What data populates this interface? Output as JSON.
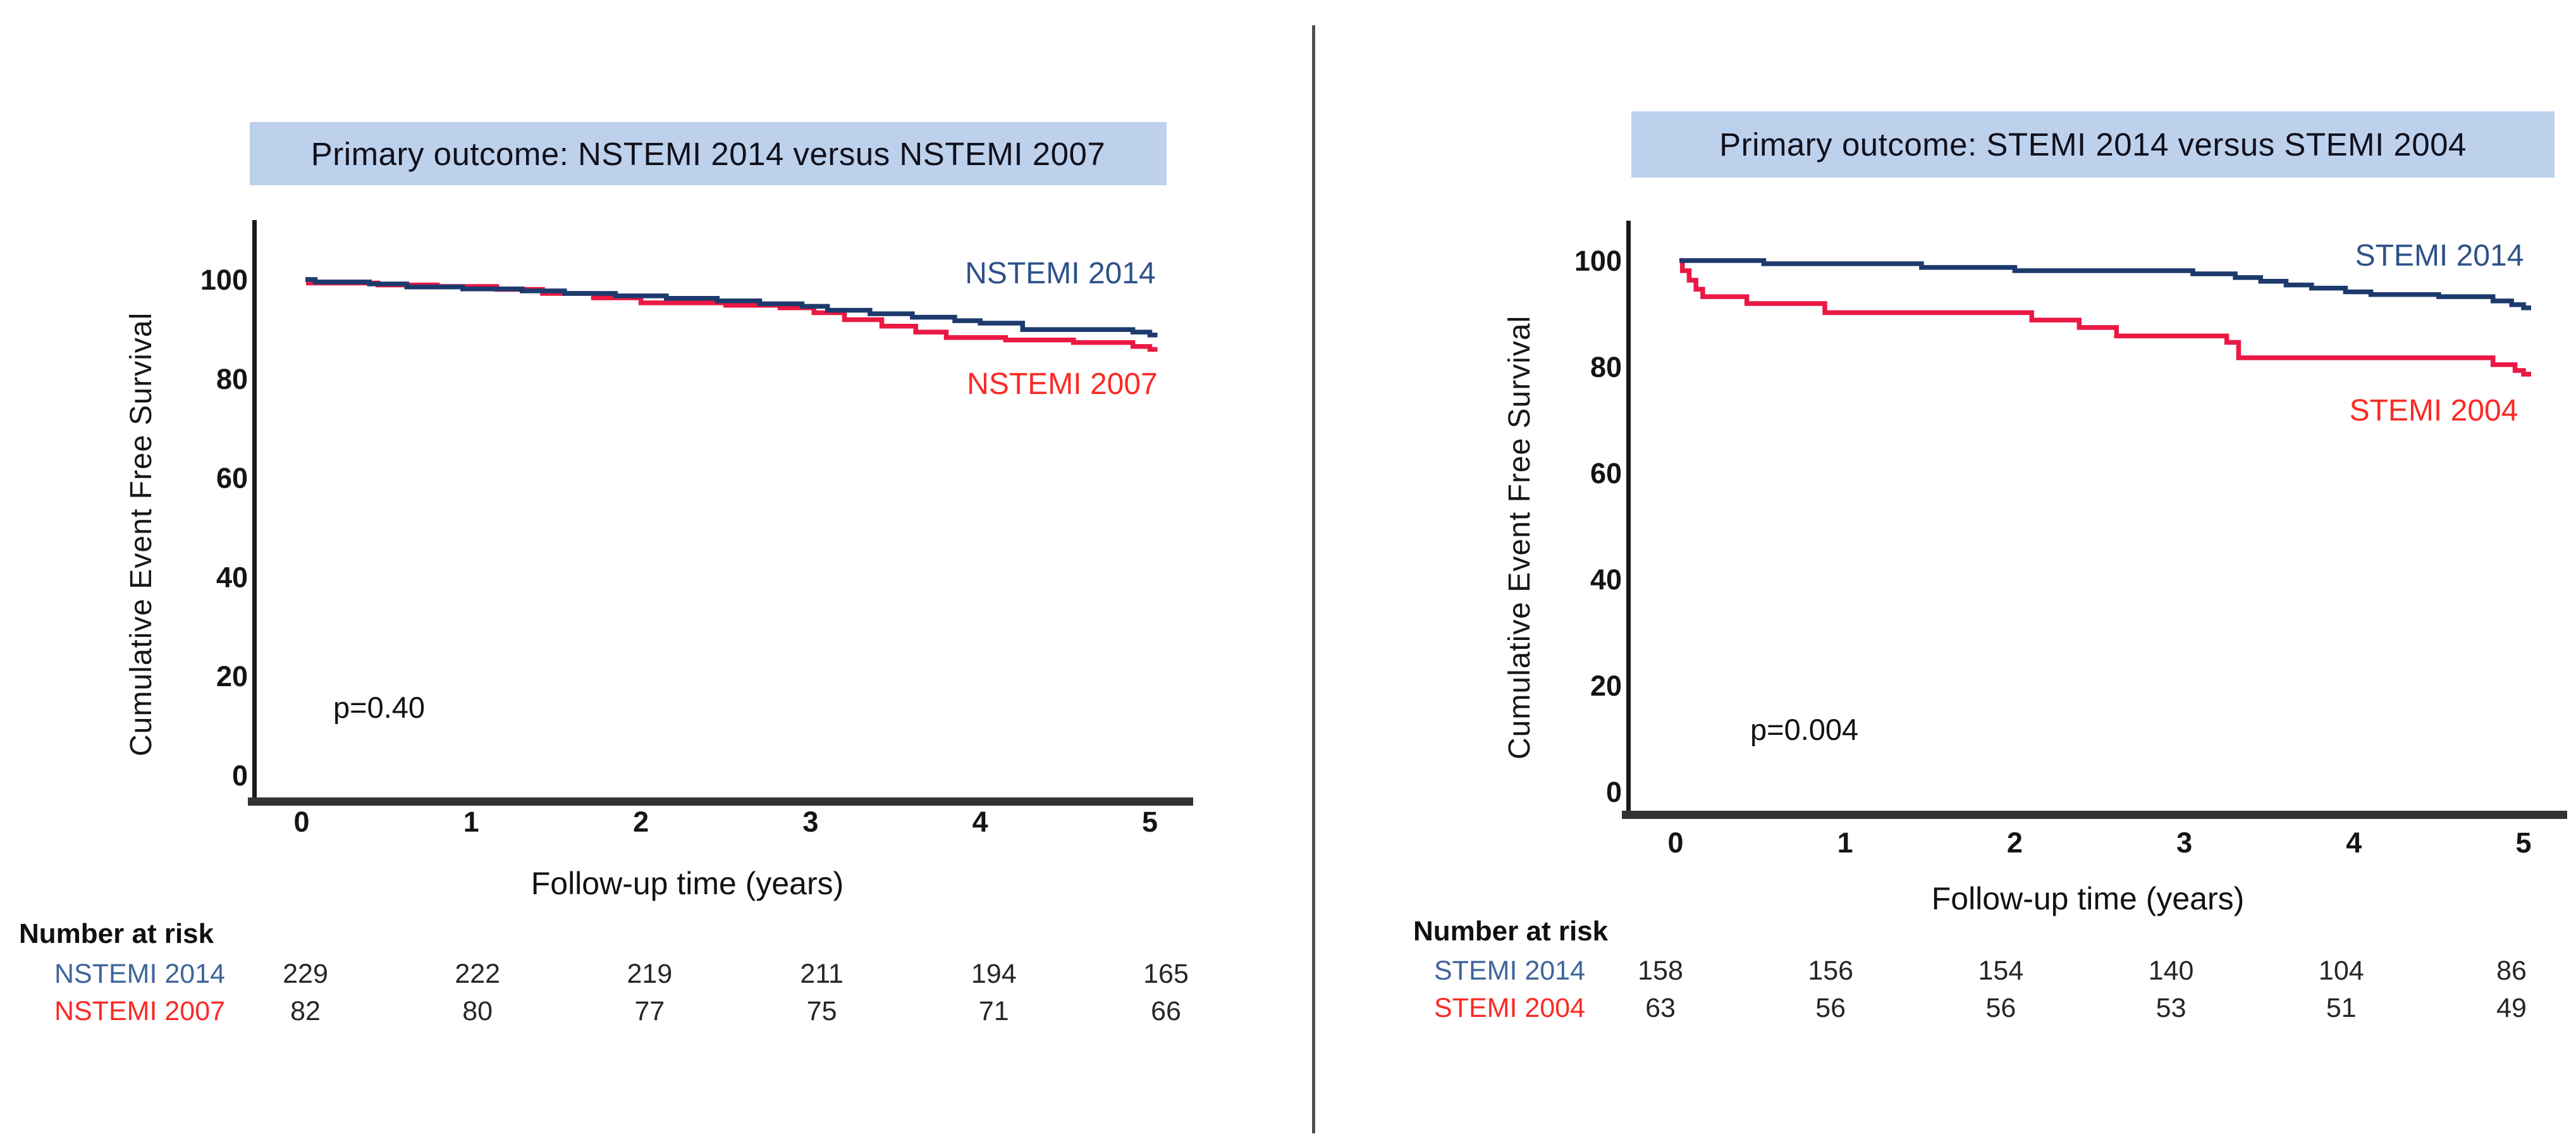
{
  "page": {
    "background": "#ffffff",
    "divider_color": "#4f4f4f"
  },
  "chart_data": [
    {
      "type": "line",
      "subtype": "kaplan-meier-step",
      "title": "Primary outcome: NSTEMI 2014 versus NSTEMI 2007",
      "title_bg": "#bdd1ec",
      "xlabel": "Follow-up time (years)",
      "ylabel": "Cumulative Event Free Survival",
      "xlim": [
        0,
        5.2
      ],
      "ylim": [
        0,
        105
      ],
      "xticks": [
        0,
        1,
        2,
        3,
        4,
        5
      ],
      "yticks": [
        100,
        80,
        60,
        40,
        20,
        0
      ],
      "grid": false,
      "p_value_label": "p=0.40",
      "legend_position": "inline-right",
      "series": [
        {
          "name": "NSTEMI 2014",
          "color": "#1d3a6d",
          "label_color": "#2e5288",
          "points": [
            [
              0,
              100
            ],
            [
              0.08,
              99.5
            ],
            [
              0.4,
              99.1
            ],
            [
              0.62,
              98.5
            ],
            [
              0.95,
              98.1
            ],
            [
              1.3,
              97.7
            ],
            [
              1.55,
              97.2
            ],
            [
              1.85,
              96.7
            ],
            [
              2.15,
              96.2
            ],
            [
              2.45,
              95.7
            ],
            [
              2.7,
              95.1
            ],
            [
              2.95,
              94.6
            ],
            [
              3.1,
              93.8
            ],
            [
              3.35,
              93.1
            ],
            [
              3.6,
              92.4
            ],
            [
              3.85,
              91.7
            ],
            [
              4.0,
              91.2
            ],
            [
              4.25,
              89.9
            ],
            [
              4.9,
              89.4
            ],
            [
              5.0,
              88.8
            ]
          ]
        },
        {
          "name": "NSTEMI 2007",
          "color": "#ea1944",
          "label_color": "#fa2a26",
          "points": [
            [
              0,
              100
            ],
            [
              0.04,
              99.3
            ],
            [
              0.45,
              98.9
            ],
            [
              0.8,
              98.6
            ],
            [
              1.15,
              98.0
            ],
            [
              1.42,
              97.2
            ],
            [
              1.72,
              96.3
            ],
            [
              2.0,
              95.3
            ],
            [
              2.5,
              94.8
            ],
            [
              2.82,
              94.3
            ],
            [
              3.02,
              93.3
            ],
            [
              3.2,
              91.9
            ],
            [
              3.42,
              90.6
            ],
            [
              3.62,
              89.4
            ],
            [
              3.8,
              88.3
            ],
            [
              4.15,
              87.8
            ],
            [
              4.55,
              87.3
            ],
            [
              4.9,
              86.5
            ],
            [
              5.0,
              85.9
            ]
          ]
        }
      ],
      "number_at_risk": {
        "header": "Number at risk",
        "times": [
          0,
          1,
          2,
          3,
          4,
          5
        ],
        "rows": [
          {
            "name": "NSTEMI 2014",
            "color": "#3f659b",
            "counts": [
              229,
              222,
              219,
              211,
              194,
              165
            ]
          },
          {
            "name": "NSTEMI 2007",
            "color": "#fa2a26",
            "counts": [
              82,
              80,
              77,
              75,
              71,
              66
            ]
          }
        ]
      }
    },
    {
      "type": "line",
      "subtype": "kaplan-meier-step",
      "title": "Primary outcome: STEMI 2014 versus STEMI 2004",
      "title_bg": "#bdd1ec",
      "xlabel": "Follow-up time (years)",
      "ylabel": "Cumulative Event Free Survival",
      "xlim": [
        0,
        5.2
      ],
      "ylim": [
        0,
        105
      ],
      "xticks": [
        0,
        1,
        2,
        3,
        4,
        5
      ],
      "yticks": [
        100,
        80,
        60,
        40,
        20,
        0
      ],
      "grid": false,
      "p_value_label": "p=0.004",
      "legend_position": "inline-right",
      "series": [
        {
          "name": "STEMI 2014",
          "color": "#1d3a6d",
          "label_color": "#2e5288",
          "points": [
            [
              0,
              100
            ],
            [
              0.52,
              99.4
            ],
            [
              1.45,
              98.7
            ],
            [
              2.0,
              98.1
            ],
            [
              3.05,
              97.5
            ],
            [
              3.3,
              96.8
            ],
            [
              3.45,
              96.1
            ],
            [
              3.6,
              95.4
            ],
            [
              3.75,
              94.8
            ],
            [
              3.95,
              94.1
            ],
            [
              4.1,
              93.6
            ],
            [
              4.5,
              93.2
            ],
            [
              4.82,
              92.4
            ],
            [
              4.93,
              91.7
            ],
            [
              5.0,
              91.1
            ]
          ]
        },
        {
          "name": "STEMI 2004",
          "color": "#ea1944",
          "label_color": "#fa2a26",
          "points": [
            [
              0,
              100
            ],
            [
              0.04,
              98.1
            ],
            [
              0.08,
              96.3
            ],
            [
              0.12,
              94.6
            ],
            [
              0.16,
              93.2
            ],
            [
              0.42,
              91.9
            ],
            [
              0.88,
              90.2
            ],
            [
              2.1,
              88.8
            ],
            [
              2.38,
              87.4
            ],
            [
              2.6,
              85.8
            ],
            [
              3.25,
              84.6
            ],
            [
              3.32,
              81.7
            ],
            [
              4.82,
              80.4
            ],
            [
              4.95,
              79.3
            ],
            [
              5.0,
              78.6
            ]
          ]
        }
      ],
      "number_at_risk": {
        "header": "Number at risk",
        "times": [
          0,
          1,
          2,
          3,
          4,
          5
        ],
        "rows": [
          {
            "name": "STEMI 2014",
            "color": "#3f659b",
            "counts": [
              158,
              156,
              154,
              140,
              104,
              86
            ]
          },
          {
            "name": "STEMI 2004",
            "color": "#fa2a26",
            "counts": [
              63,
              56,
              56,
              53,
              51,
              49
            ]
          }
        ]
      }
    }
  ]
}
